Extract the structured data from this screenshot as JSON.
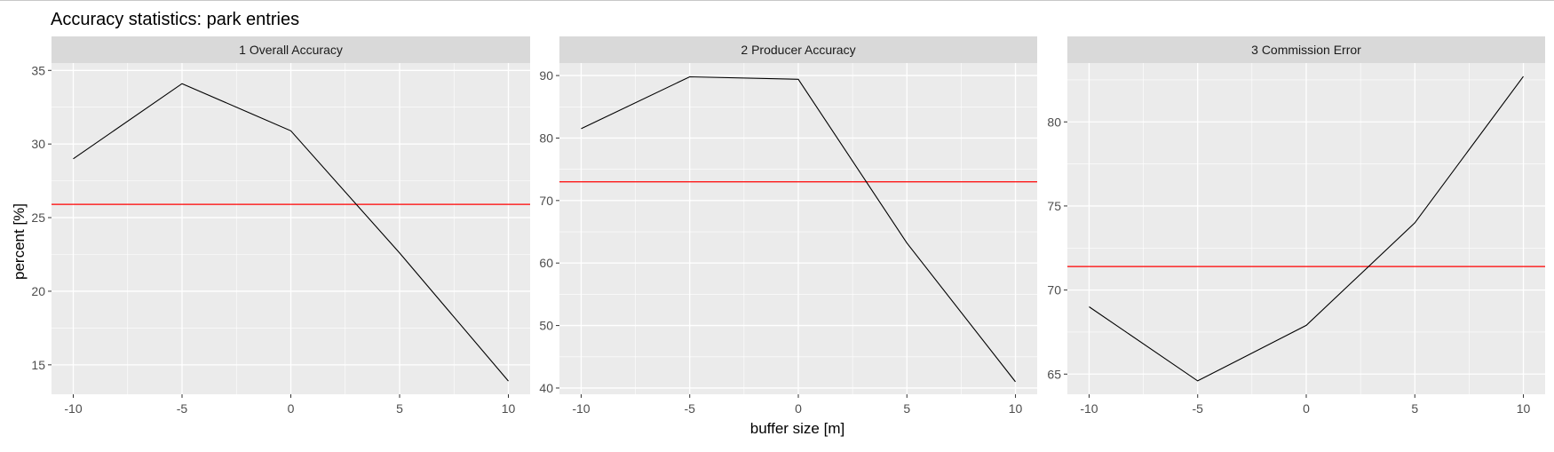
{
  "chart_data": {
    "type": "line",
    "title": "Accuracy statistics: park entries",
    "xlabel": "buffer size [m]",
    "ylabel": "percent [%]",
    "grid": true,
    "colors": {
      "line": "#000000",
      "reference_line": "#ff0000",
      "panel_bg": "#ebebeb",
      "strip_bg": "#d9d9d9",
      "grid": "#ffffff"
    },
    "panels": [
      {
        "name": "1 Overall Accuracy",
        "x": [
          -10,
          -5,
          0,
          5,
          10
        ],
        "y": [
          29.0,
          34.1,
          30.9,
          22.6,
          13.9
        ],
        "reference": 25.9,
        "xlim": [
          -11,
          11
        ],
        "ylim": [
          13,
          35.5
        ],
        "xticks": [
          -10,
          -5,
          0,
          5,
          10
        ],
        "yticks": [
          15,
          20,
          25,
          30,
          35
        ]
      },
      {
        "name": "2 Producer Accuracy",
        "x": [
          -10,
          -5,
          0,
          5,
          10
        ],
        "y": [
          81.5,
          89.8,
          89.4,
          63.2,
          41.0
        ],
        "reference": 73.0,
        "xlim": [
          -11,
          11
        ],
        "ylim": [
          39,
          92
        ],
        "xticks": [
          -10,
          -5,
          0,
          5,
          10
        ],
        "yticks": [
          40,
          50,
          60,
          70,
          80,
          90
        ]
      },
      {
        "name": "3 Commission Error",
        "x": [
          -10,
          -5,
          0,
          5,
          10
        ],
        "y": [
          69.0,
          64.6,
          67.9,
          74.0,
          82.7
        ],
        "reference": 71.4,
        "xlim": [
          -11,
          11
        ],
        "ylim": [
          63.8,
          83.5
        ],
        "xticks": [
          -10,
          -5,
          0,
          5,
          10
        ],
        "yticks": [
          65,
          70,
          75,
          80
        ]
      }
    ]
  }
}
